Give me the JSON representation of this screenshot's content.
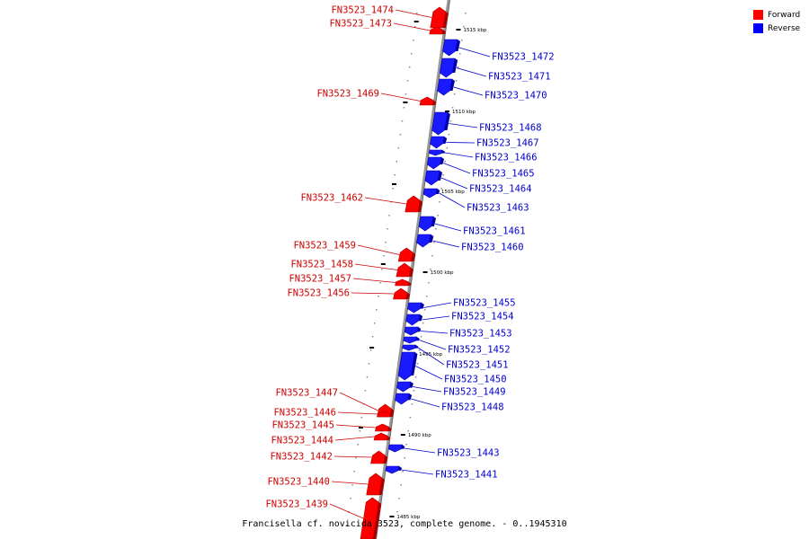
{
  "caption": "Francisella cf. novicida 3523, complete genome. - 0..1945310",
  "legend": {
    "forward": {
      "label": "Forward",
      "color": "#ff0000"
    },
    "reverse": {
      "label": "Reverse",
      "color": "#0000ff"
    }
  },
  "colors": {
    "backbone": "#999999",
    "forward": "#ff0000",
    "forward_dark": "#aa0000",
    "reverse": "#1a1aff",
    "reverse_dark": "#0000aa",
    "forward_text": "#cc0000",
    "reverse_text": "#0000cc"
  },
  "ticks": [
    "1515 kbp",
    "1510 kbp",
    "1505 kbp",
    "1500 kbp",
    "1495 kbp",
    "1490 kbp",
    "1485 kbp"
  ],
  "genes": [
    {
      "label": "FN3523_1474",
      "strand": "forward"
    },
    {
      "label": "FN3523_1473",
      "strand": "forward"
    },
    {
      "label": "FN3523_1472",
      "strand": "reverse"
    },
    {
      "label": "FN3523_1471",
      "strand": "reverse"
    },
    {
      "label": "FN3523_1470",
      "strand": "reverse"
    },
    {
      "label": "FN3523_1469",
      "strand": "forward"
    },
    {
      "label": "FN3523_1468",
      "strand": "reverse"
    },
    {
      "label": "FN3523_1467",
      "strand": "reverse"
    },
    {
      "label": "FN3523_1466",
      "strand": "reverse"
    },
    {
      "label": "FN3523_1465",
      "strand": "reverse"
    },
    {
      "label": "FN3523_1464",
      "strand": "reverse"
    },
    {
      "label": "FN3523_1462",
      "strand": "forward"
    },
    {
      "label": "FN3523_1463",
      "strand": "reverse"
    },
    {
      "label": "FN3523_1461",
      "strand": "reverse"
    },
    {
      "label": "FN3523_1460",
      "strand": "reverse"
    },
    {
      "label": "FN3523_1459",
      "strand": "forward"
    },
    {
      "label": "FN3523_1458",
      "strand": "forward"
    },
    {
      "label": "FN3523_1457",
      "strand": "forward"
    },
    {
      "label": "FN3523_1456",
      "strand": "forward"
    },
    {
      "label": "FN3523_1455",
      "strand": "reverse"
    },
    {
      "label": "FN3523_1454",
      "strand": "reverse"
    },
    {
      "label": "FN3523_1453",
      "strand": "reverse"
    },
    {
      "label": "FN3523_1452",
      "strand": "reverse"
    },
    {
      "label": "FN3523_1451",
      "strand": "reverse"
    },
    {
      "label": "FN3523_1450",
      "strand": "reverse"
    },
    {
      "label": "FN3523_1449",
      "strand": "reverse"
    },
    {
      "label": "FN3523_1448",
      "strand": "reverse"
    },
    {
      "label": "FN3523_1447",
      "strand": "forward"
    },
    {
      "label": "FN3523_1446",
      "strand": "forward"
    },
    {
      "label": "FN3523_1445",
      "strand": "forward"
    },
    {
      "label": "FN3523_1444",
      "strand": "forward"
    },
    {
      "label": "FN3523_1443",
      "strand": "reverse"
    },
    {
      "label": "FN3523_1442",
      "strand": "forward"
    },
    {
      "label": "FN3523_1441",
      "strand": "reverse"
    },
    {
      "label": "FN3523_1440",
      "strand": "forward"
    },
    {
      "label": "FN3523_1439",
      "strand": "forward"
    }
  ]
}
